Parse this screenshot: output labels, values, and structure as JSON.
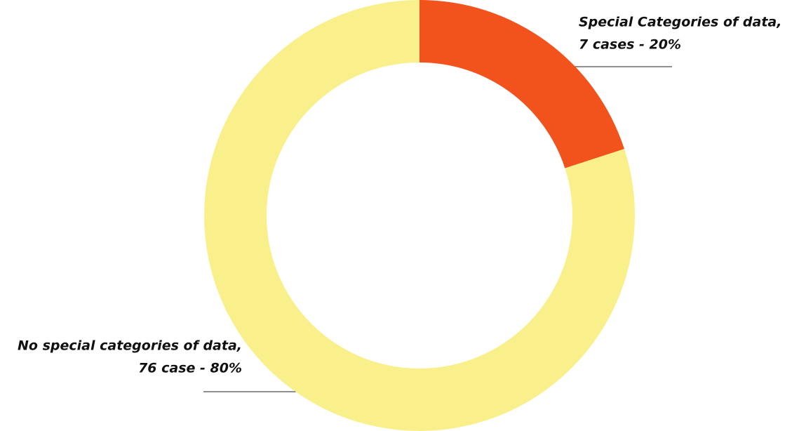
{
  "chart_data": {
    "type": "donut",
    "categories": [
      "Special Categories of data,",
      "No special categories of data,"
    ],
    "values": [
      20,
      80
    ],
    "value_labels": [
      "7 cases - 20%",
      "76 case - 80%"
    ],
    "colors": [
      "#f2521c",
      "#f9f08b"
    ]
  }
}
